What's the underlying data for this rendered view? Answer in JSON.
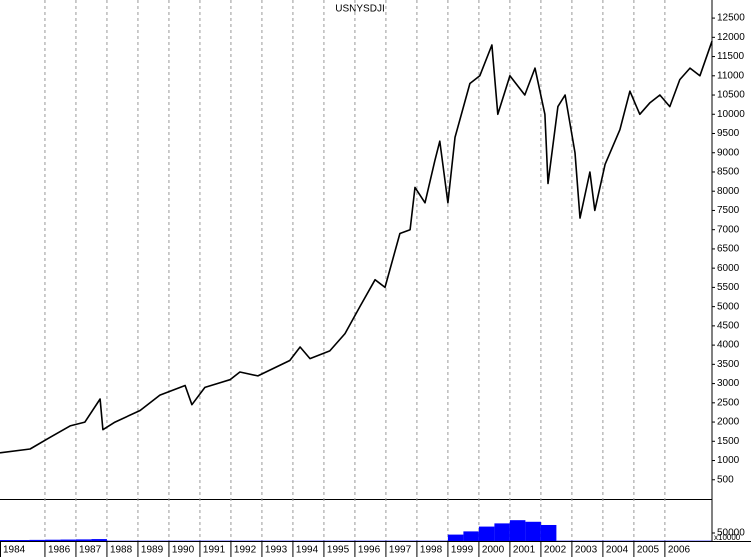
{
  "chart_data": [
    {
      "type": "line",
      "title": "USNYSDJI",
      "color": "#000000",
      "x": [
        1984.55,
        1985.52,
        1986.16,
        1986.81,
        1987.29,
        1987.78,
        1987.87,
        1988.26,
        1989.07,
        1989.71,
        1990.52,
        1990.74,
        1991.16,
        1991.97,
        1992.29,
        1992.87,
        1993.9,
        1994.23,
        1994.55,
        1995.19,
        1995.68,
        1996.16,
        1996.65,
        1996.97,
        1997.45,
        1997.78,
        1997.94,
        1998.26,
        1998.58,
        1998.74,
        1999.0,
        1999.23,
        1999.71,
        2000.03,
        2000.42,
        2000.61,
        2001.0,
        2001.48,
        2001.81,
        2002.13,
        2002.23,
        2002.55,
        2002.78,
        2003.1,
        2003.26,
        2003.58,
        2003.74,
        2004.07,
        2004.55,
        2004.87,
        2005.19,
        2005.52,
        2005.84,
        2006.16,
        2006.48,
        2006.81,
        2007.13,
        2007.52
      ],
      "values": [
        1200,
        1300,
        1600,
        1900,
        2000,
        2600,
        1800,
        2000,
        2300,
        2700,
        2950,
        2450,
        2900,
        3100,
        3300,
        3200,
        3600,
        3950,
        3650,
        3850,
        4300,
        5000,
        5700,
        5500,
        6900,
        7000,
        8100,
        7700,
        8800,
        9300,
        7700,
        9400,
        10800,
        11000,
        11800,
        10000,
        11000,
        10500,
        11200,
        10000,
        8200,
        10200,
        10500,
        9000,
        7300,
        8500,
        7500,
        8700,
        9600,
        10600,
        10000,
        10300,
        10500,
        10200,
        10900,
        11200,
        11000,
        11900
      ],
      "xlim": [
        1984.55,
        2007.52
      ],
      "xticks": [
        1984,
        1986,
        1987,
        1988,
        1989,
        1990,
        1991,
        1992,
        1993,
        1994,
        1995,
        1996,
        1997,
        1998,
        1999,
        2000,
        2001,
        2002,
        2003,
        2004,
        2005,
        2006
      ],
      "ylim": [
        0,
        12970
      ],
      "yticks": [
        500,
        1000,
        1500,
        2000,
        2500,
        3000,
        3500,
        4000,
        4500,
        5000,
        5500,
        6000,
        6500,
        7000,
        7500,
        8000,
        8500,
        9000,
        9500,
        10000,
        10500,
        11000,
        11500,
        12000,
        12500
      ],
      "grid": true
    },
    {
      "type": "bar",
      "color": "#0000ff",
      "unit_label": "x10000",
      "x": [
        1984.75,
        1985.25,
        1985.75,
        1986.25,
        1986.75,
        1987.25,
        1987.75,
        1988.25,
        1988.75,
        1989.25,
        1989.75,
        1990.25,
        1990.75,
        1991.25,
        1991.75,
        1992.25,
        1992.75,
        1993.25,
        1993.75,
        1994.25,
        1994.75,
        1995.25,
        1995.75,
        1996.25,
        1996.75,
        1997.25,
        1997.75,
        1998.25,
        1998.75,
        1999.25,
        1999.75,
        2000.25,
        2000.75,
        2001.25,
        2001.75,
        2002.25,
        2002.75,
        2003.25,
        2003.75,
        2004.25,
        2004.75,
        2005.25,
        2005.75,
        2006.25,
        2006.75,
        2007.25
      ],
      "values": [
        6000,
        6000,
        7000,
        8000,
        9000,
        10000,
        12000,
        2000,
        2000,
        2000,
        2000,
        2000,
        2000,
        2000,
        2000,
        2000,
        2000,
        2000,
        2000,
        2000,
        2000,
        2000,
        2000,
        2000,
        2000,
        2000,
        2000,
        2000,
        2000,
        40000,
        60000,
        90000,
        110000,
        130000,
        120000,
        100000,
        2000,
        2000,
        2000,
        2000,
        2000,
        2000,
        2000,
        2000,
        2000,
        2000
      ],
      "xlim": [
        1984.55,
        2007.52
      ],
      "ylim": [
        0,
        256000
      ],
      "yticks": [
        50000
      ]
    }
  ]
}
